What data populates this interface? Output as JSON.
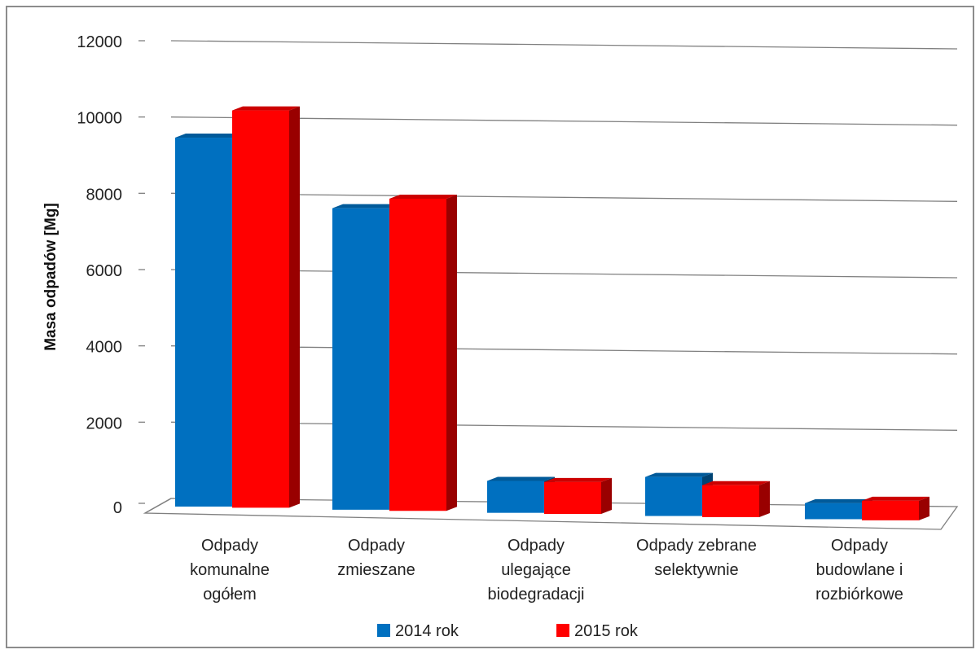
{
  "chart_data": {
    "type": "bar",
    "title": "",
    "xlabel": "",
    "ylabel": "Masa odpadów [Mg]",
    "ylim": [
      0,
      12000
    ],
    "yticks": [
      0,
      2000,
      4000,
      6000,
      8000,
      10000,
      12000
    ],
    "grid": true,
    "legend_position": "bottom",
    "categories": [
      [
        "Odpady",
        "komunalne",
        "ogółem"
      ],
      [
        "Odpady",
        "zmieszane"
      ],
      [
        "Odpady",
        "ulegające",
        "biodegradacji"
      ],
      [
        "Odpady zebrane",
        "selektywnie"
      ],
      [
        "Odpady",
        "budowlane i",
        "rozbiórkowe"
      ]
    ],
    "series": [
      {
        "name": "2014 rok",
        "color": "#0070c0",
        "values": [
          10400,
          8500,
          900,
          1100,
          450
        ]
      },
      {
        "name": "2015 rok",
        "color": "#ff0000",
        "values": [
          11200,
          8800,
          900,
          900,
          550
        ]
      }
    ]
  }
}
